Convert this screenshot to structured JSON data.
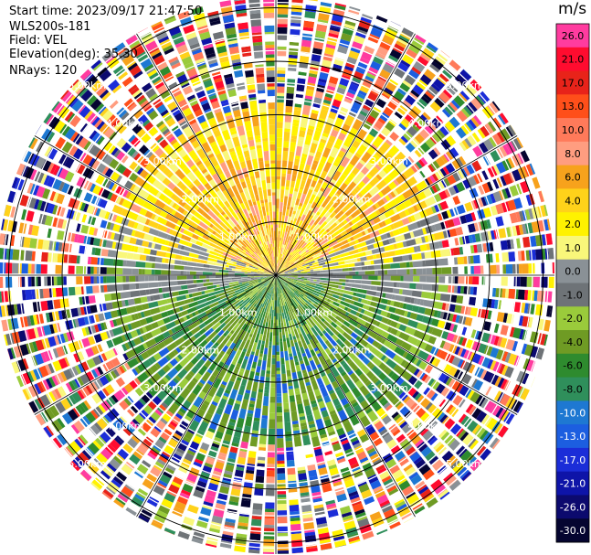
{
  "header": {
    "start_time": "Start time: 2023/09/17 21:47:50",
    "instrument": "WLS200s-181",
    "field": "Field: VEL",
    "elevation": "Elevation(deg): 35.30",
    "nrays": "NRays: 120"
  },
  "colorbar": {
    "unit": "m/s",
    "ticks": [
      "26.0",
      "21.0",
      "17.0",
      "13.0",
      "10.0",
      "8.0",
      "6.0",
      "4.0",
      "2.0",
      "1.0",
      "0.0",
      "-1.0",
      "-2.0",
      "-4.0",
      "-6.0",
      "-8.0",
      "-10.0",
      "-13.0",
      "-17.0",
      "-21.0",
      "-26.0",
      "-30.0"
    ],
    "colors": [
      "#ff3c9f",
      "#ff0c2f",
      "#e8231a",
      "#ff4f1a",
      "#ff7a5a",
      "#ff9d80",
      "#f7a21c",
      "#ffd21a",
      "#fff200",
      "#f9f77a",
      "#8a9196",
      "#6e7377",
      "#9acb3b",
      "#6f9b24",
      "#2e8b2e",
      "#2f8f5b",
      "#1e78d2",
      "#1c5ee0",
      "#1b2dd8",
      "#0e14a8",
      "#0c0a6e",
      "#050530"
    ]
  },
  "chart_data": {
    "type": "heatmap",
    "subtype": "polar-ppi",
    "field": "VEL",
    "nrays": 120,
    "rings_km": [
      1.0,
      2.0,
      3.0,
      4.0,
      5.0
    ],
    "ring_labels": [
      "1.00km",
      "2.00km",
      "3.00km",
      "4.00km",
      "5.00km"
    ],
    "value_range": [
      -30.0,
      26.0
    ],
    "bands": [
      {
        "range_km": [
          0.0,
          1.0
        ],
        "north": "orange-yellow",
        "south": "green",
        "east_west": "gray"
      },
      {
        "range_km": [
          1.0,
          2.0
        ],
        "north": "orange-yellow",
        "south": "green",
        "east_west": "gray"
      },
      {
        "range_km": [
          2.0,
          3.0
        ],
        "north": "orange",
        "south": "green-blue",
        "east_west": "gray"
      },
      {
        "range_km": [
          3.0,
          5.4
        ],
        "pattern": "noise"
      }
    ]
  }
}
